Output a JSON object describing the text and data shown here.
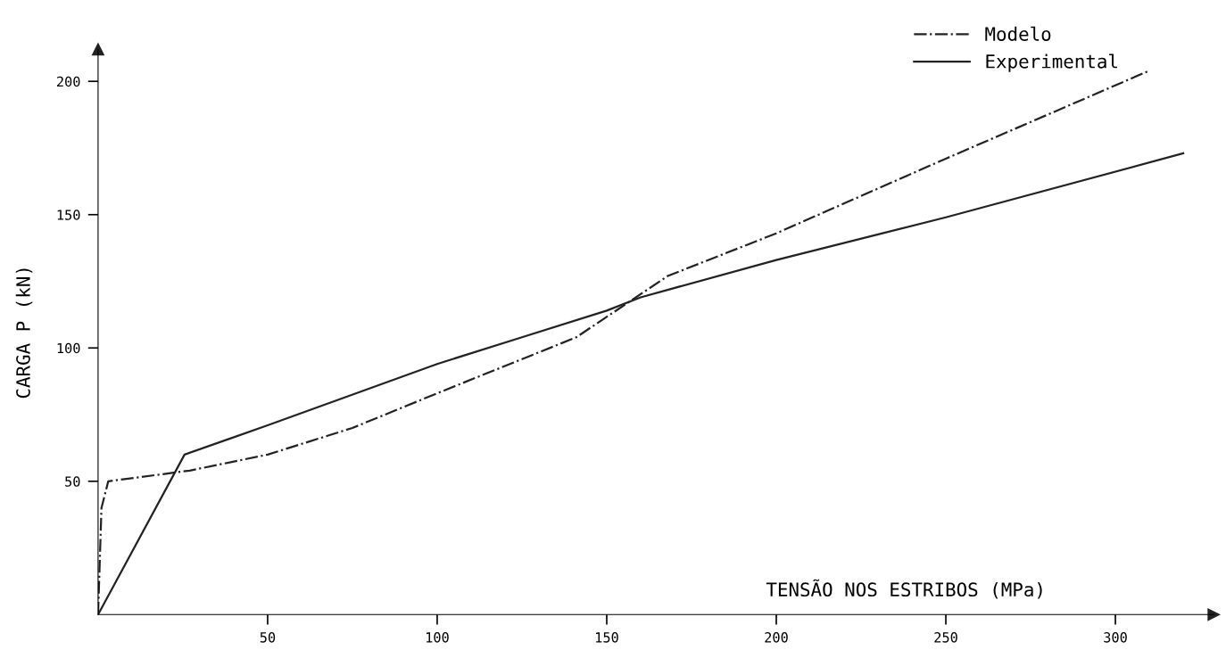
{
  "chart_data": {
    "type": "line",
    "xlabel": "TENSÃO NOS ESTRIBOS (MPa)",
    "ylabel": "CARGA P (kN)",
    "xlim": [
      0,
      329
    ],
    "ylim": [
      0,
      212
    ],
    "xticks": [
      50,
      100,
      150,
      200,
      250,
      300
    ],
    "yticks": [
      50,
      100,
      150,
      200
    ],
    "grid": false,
    "legend": "top right",
    "marker": "none",
    "series": [
      {
        "name": "Modelo",
        "color": "#222222",
        "line_style": "dashdot",
        "x": [
          0,
          1,
          3,
          27,
          50,
          75,
          100,
          141,
          168,
          200,
          250,
          310
        ],
        "values": [
          0,
          40,
          50,
          54,
          60,
          70,
          83,
          104,
          127,
          143,
          171,
          204
        ]
      },
      {
        "name": "Experimental",
        "color": "#222222",
        "line_style": "solid",
        "x": [
          0,
          25.5,
          50,
          100,
          125,
          150,
          160,
          200,
          250,
          320
        ],
        "values": [
          0,
          60,
          71,
          94,
          104,
          114,
          119,
          133,
          149,
          173
        ]
      }
    ]
  }
}
